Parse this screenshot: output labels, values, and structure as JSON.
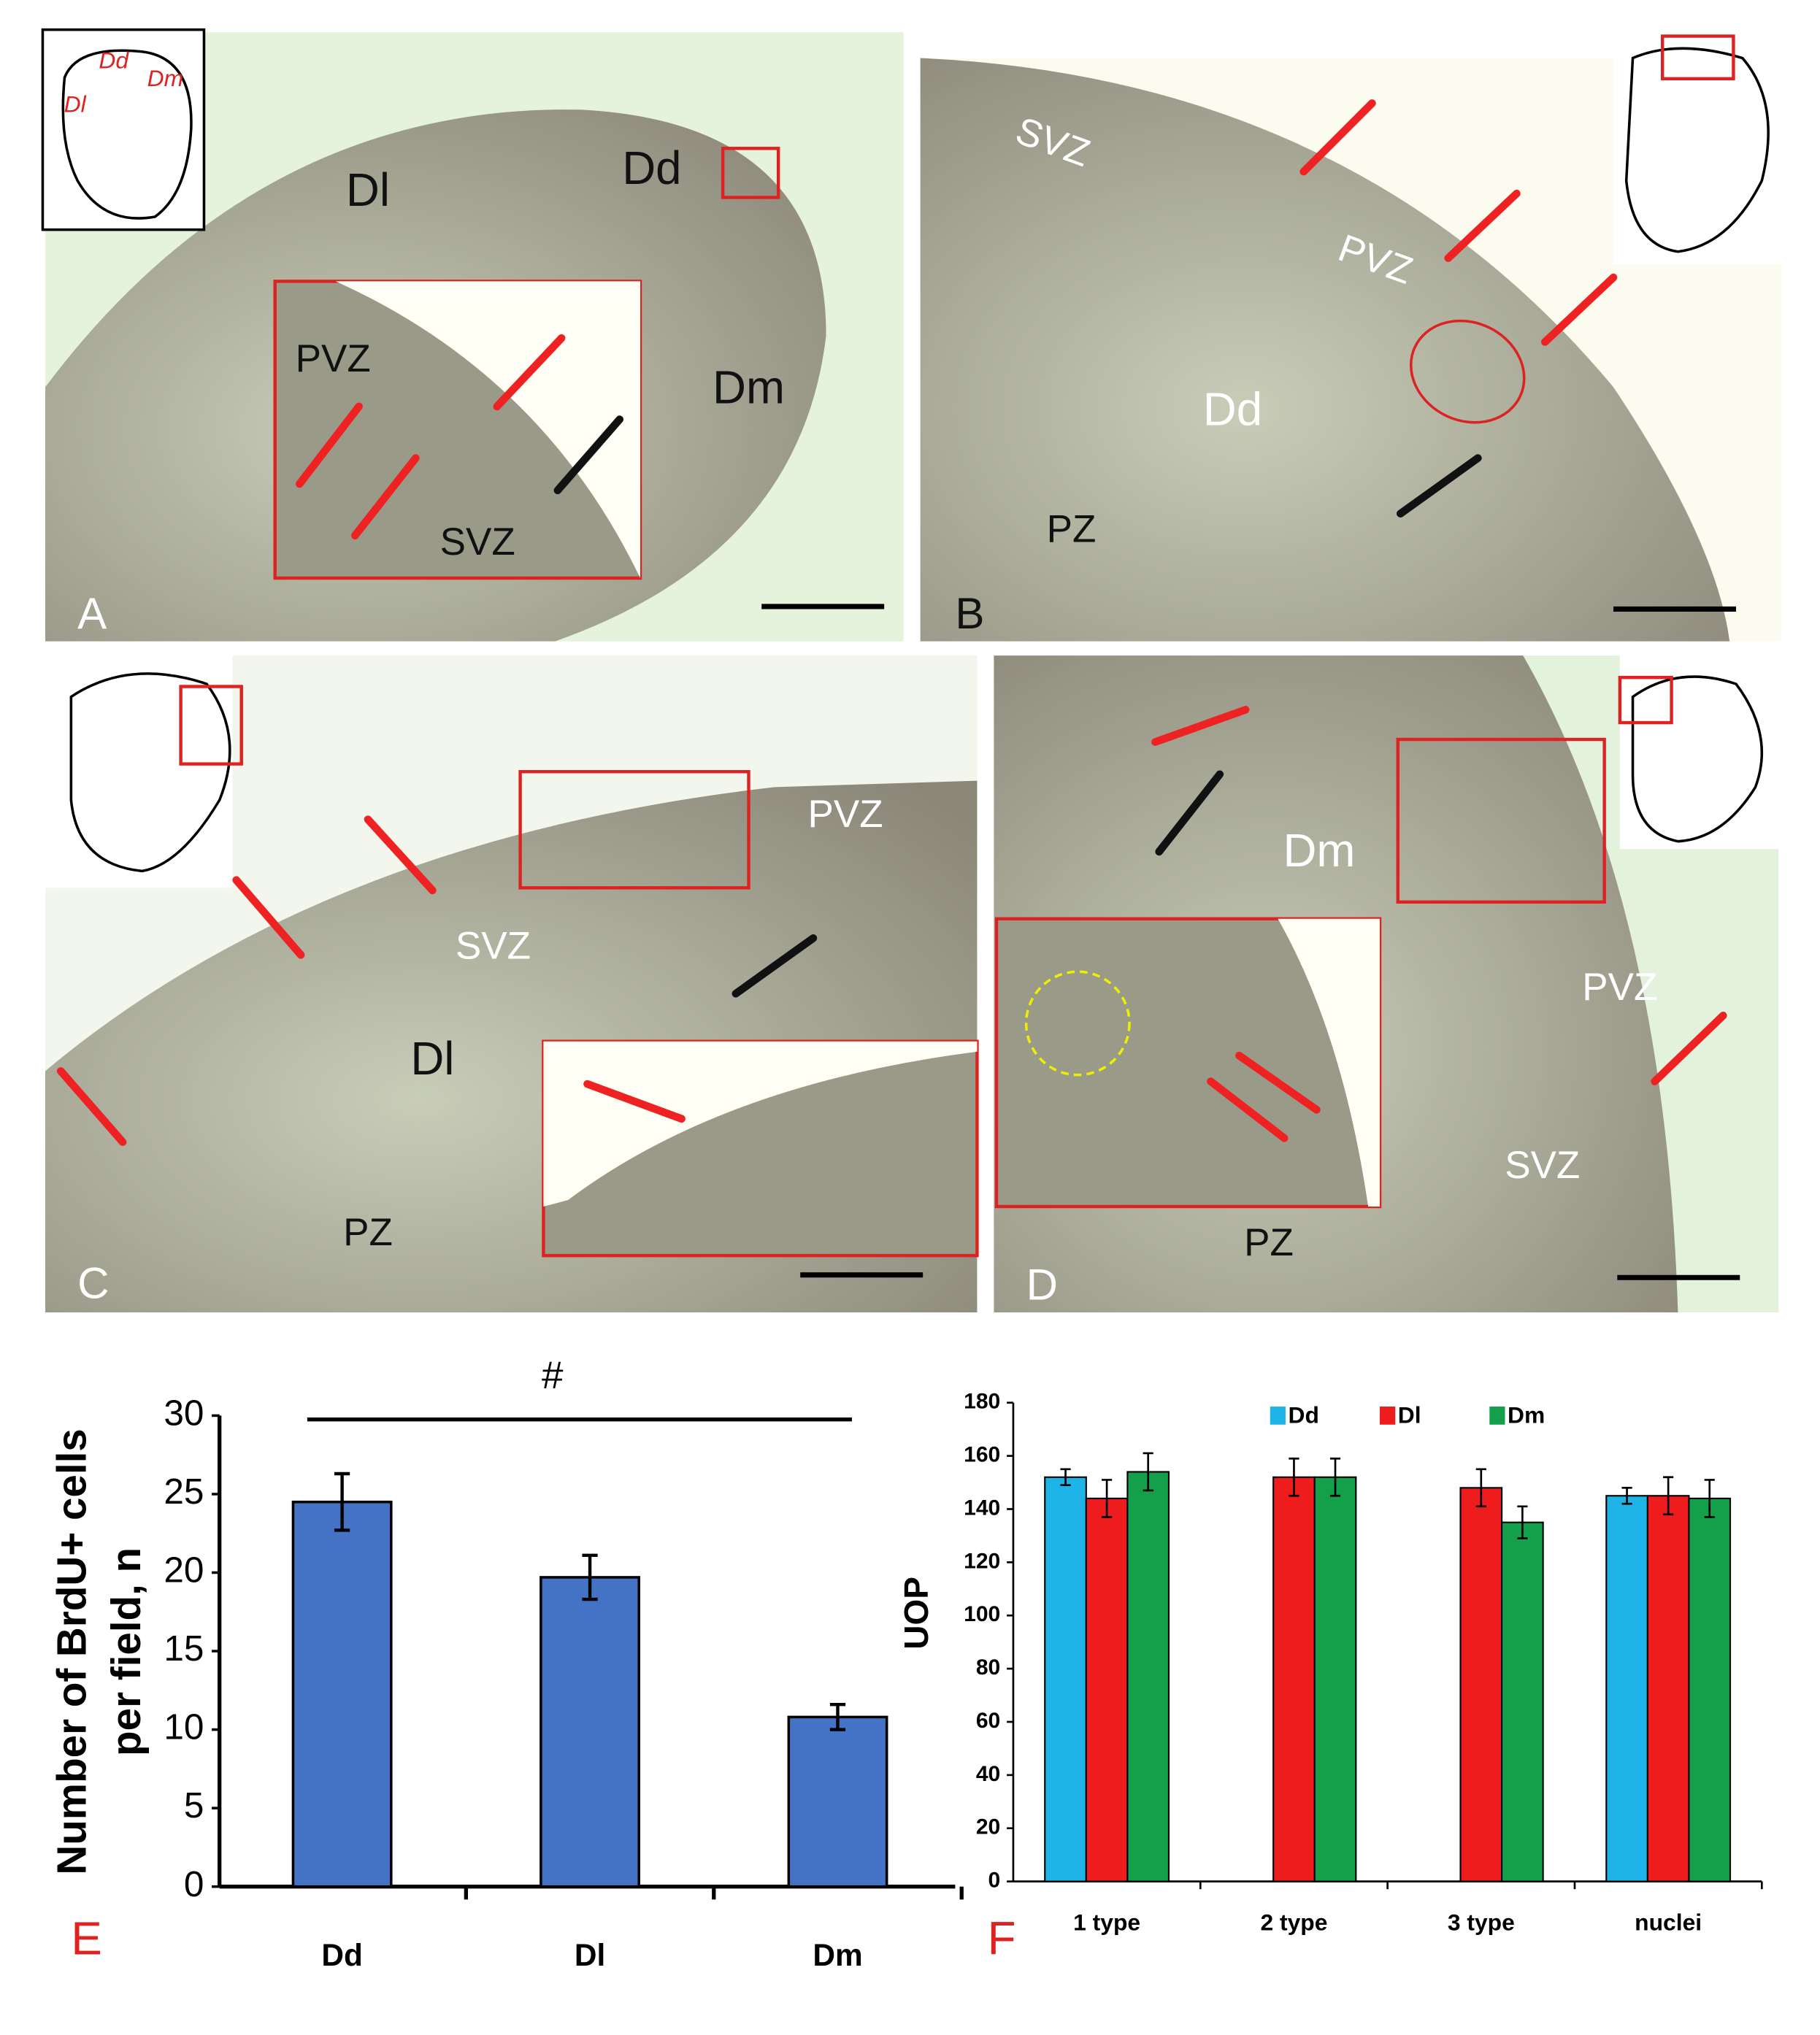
{
  "micrographs": {
    "panels": [
      {
        "letter": "A",
        "labels": [
          "Dl",
          "Dd",
          "Dm",
          "PVZ",
          "SVZ"
        ],
        "map_labels": [
          "Dd",
          "Dm",
          "Dl"
        ]
      },
      {
        "letter": "B",
        "labels": [
          "SVZ",
          "PVZ",
          "Dd",
          "PZ"
        ]
      },
      {
        "letter": "C",
        "labels": [
          "PVZ",
          "SVZ",
          "Dl",
          "PZ"
        ]
      },
      {
        "letter": "D",
        "labels": [
          "Dm",
          "PVZ",
          "SVZ",
          "PZ"
        ]
      }
    ]
  },
  "chart_data": [
    {
      "type": "bar",
      "panel": "E",
      "ylabel": [
        "Number of BrdU+ cells",
        "per field, n"
      ],
      "annotation": "#",
      "categories": [
        "Dd",
        "Dl",
        "Dm"
      ],
      "values": [
        24.5,
        19.7,
        10.8
      ],
      "errors": [
        1.8,
        1.4,
        0.8
      ],
      "color": "#4472c4",
      "ylim": [
        0,
        30
      ],
      "yticks": [
        0,
        5,
        10,
        15,
        20,
        25,
        30
      ]
    },
    {
      "type": "grouped-bar",
      "panel": "F",
      "ylabel": "UOP",
      "categories": [
        "1 type",
        "2 type",
        "3 type",
        "nuclei"
      ],
      "series": [
        {
          "name": "Dd",
          "color": "#1fb4e8",
          "values": [
            152,
            null,
            null,
            145
          ],
          "errors": [
            3,
            null,
            null,
            3
          ]
        },
        {
          "name": "Dl",
          "color": "#ee1c1c",
          "values": [
            144,
            152,
            148,
            145
          ],
          "errors": [
            7,
            7,
            7,
            7
          ]
        },
        {
          "name": "Dm",
          "color": "#14a04a",
          "values": [
            154,
            152,
            135,
            144
          ],
          "errors": [
            7,
            7,
            6,
            7
          ]
        }
      ],
      "ylim": [
        0,
        180
      ],
      "yticks": [
        0,
        20,
        40,
        60,
        80,
        100,
        120,
        140,
        160,
        180
      ]
    }
  ]
}
